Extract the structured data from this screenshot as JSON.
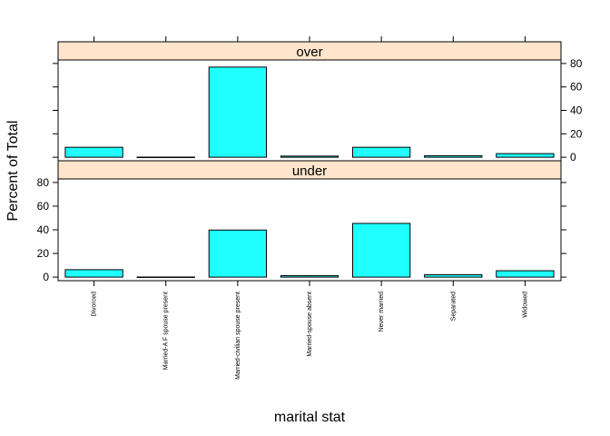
{
  "chart_data": {
    "type": "bar",
    "layout": "lattice histogram, two stacked panels",
    "xlabel": "marital stat",
    "ylabel": "Percent of Total",
    "ylim": [
      -3,
      83
    ],
    "yticks": [
      0,
      20,
      40,
      60,
      80
    ],
    "categories": [
      "Divorced",
      "Married-A F spouse present",
      "Married-civilian spouse present",
      "Married-spouse absent",
      "Never married",
      "Separated",
      "Widowed"
    ],
    "panels": [
      {
        "name": "over",
        "values": [
          8.5,
          0.1,
          76.9,
          1.0,
          8.5,
          1.3,
          3.1
        ]
      },
      {
        "name": "under",
        "values": [
          6.3,
          0.1,
          39.8,
          1.2,
          45.4,
          2.0,
          5.4
        ]
      }
    ],
    "colors": {
      "bar_fill": "#1fffff",
      "strip_fill": "#ffe5cc",
      "line": "#000000"
    },
    "grid": false
  }
}
